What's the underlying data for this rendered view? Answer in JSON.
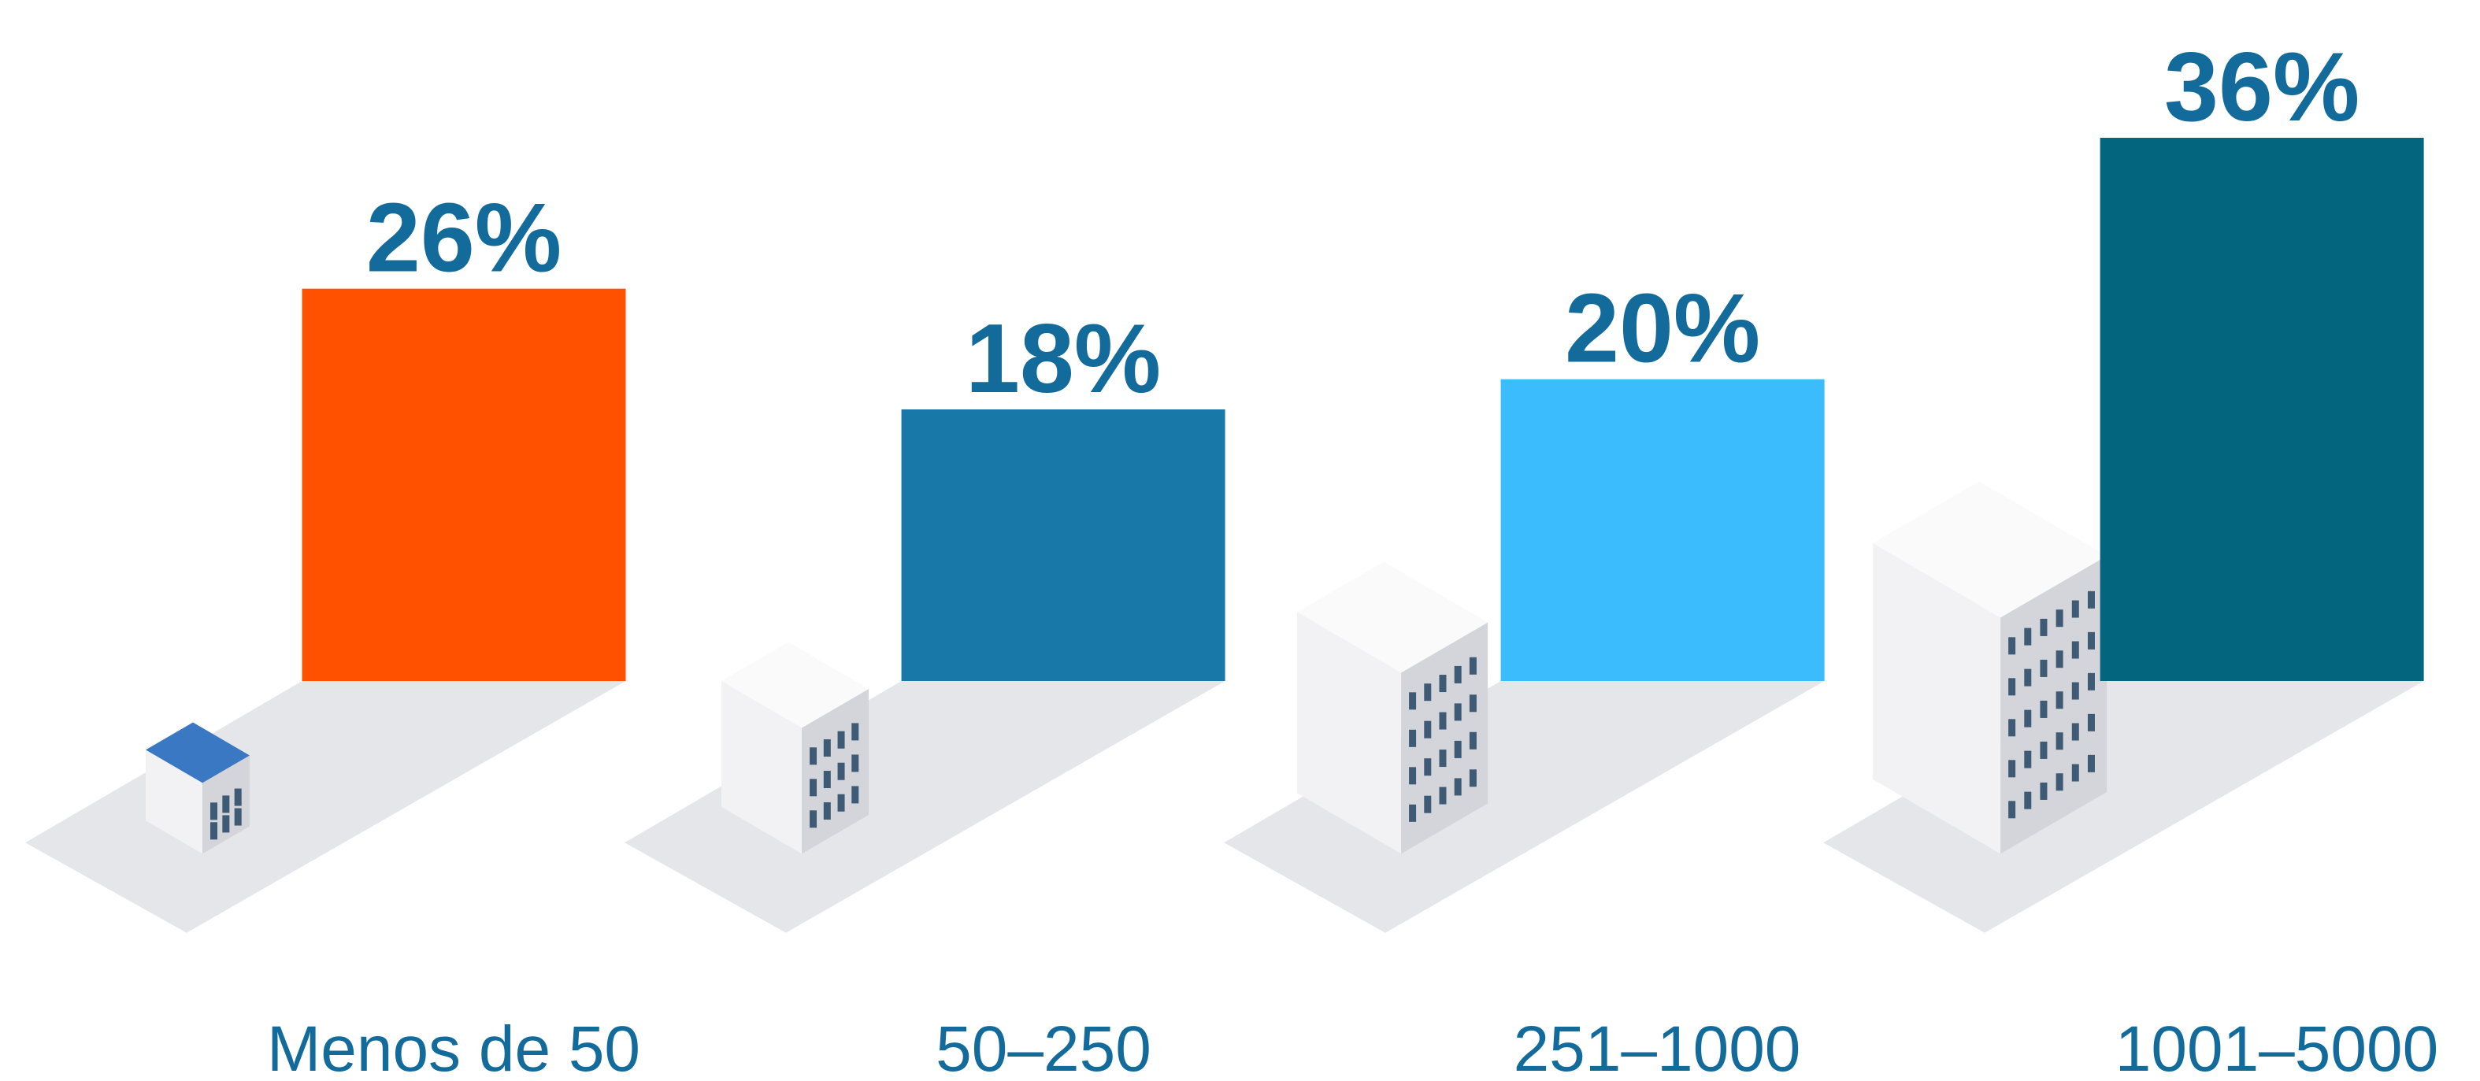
{
  "chart_data": {
    "type": "bar",
    "categories": [
      "Menos de 50",
      "50–250",
      "251–1000",
      "1001–5000"
    ],
    "values": [
      26,
      18,
      20,
      36
    ],
    "value_labels": [
      "26%",
      "18%",
      "20%",
      "36%"
    ],
    "colors": [
      "#ff5100",
      "#1878a8",
      "#3bbcfd",
      "#03667e"
    ]
  }
}
